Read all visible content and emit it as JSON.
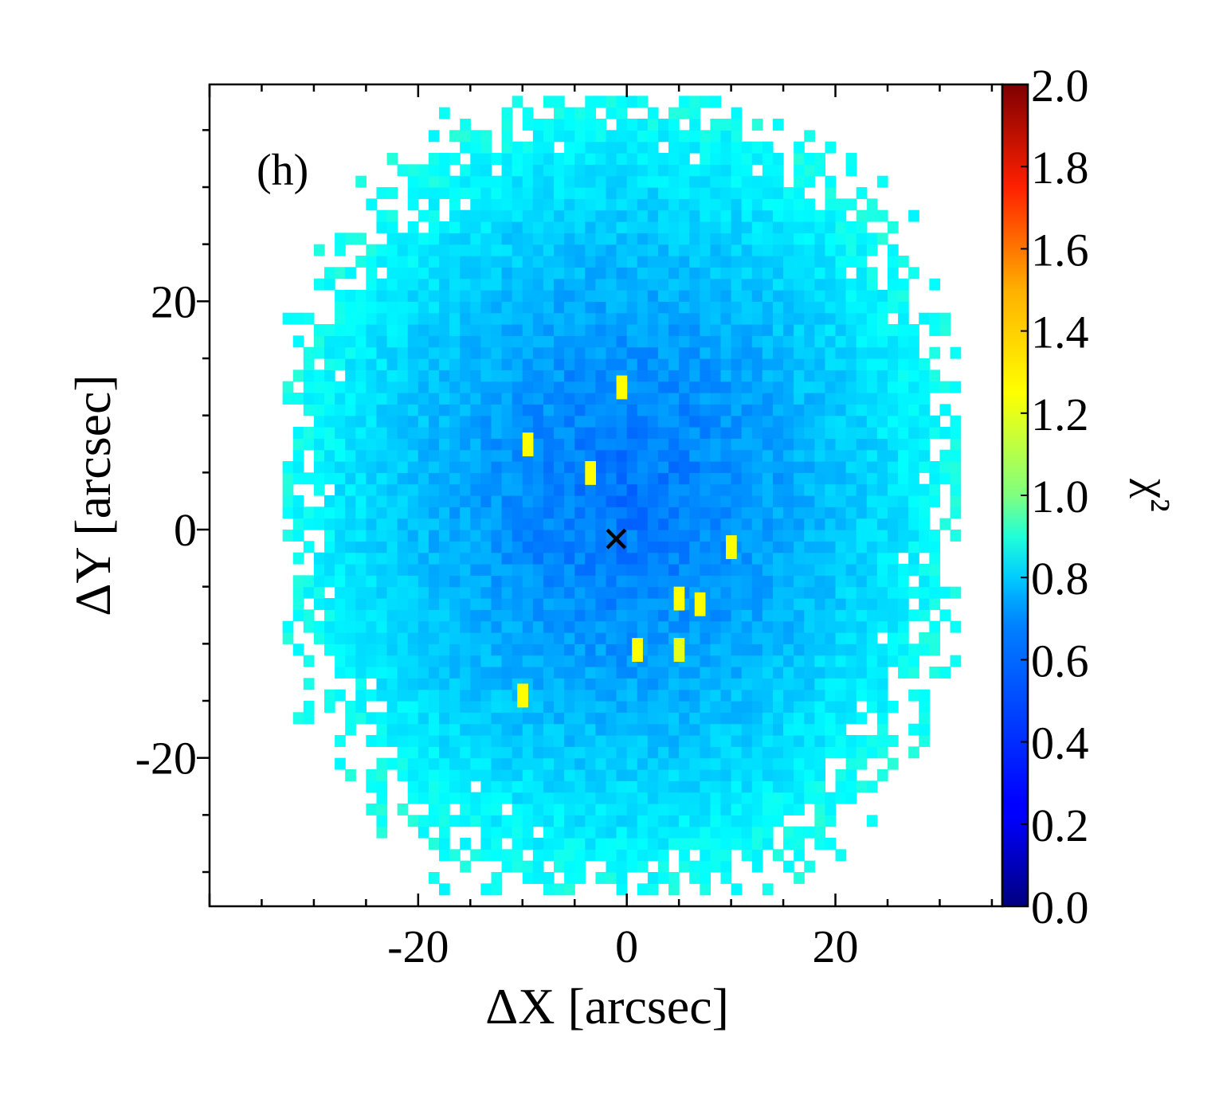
{
  "chart_data": {
    "type": "heatmap",
    "panel_label": "(h)",
    "xlabel": "ΔX [arcsec]",
    "ylabel": "ΔY [arcsec]",
    "xlim": [
      -40,
      36
    ],
    "ylim": [
      -33,
      39
    ],
    "x_ticks": [
      {
        "value": -20,
        "label": "-20"
      },
      {
        "value": 0,
        "label": "0"
      },
      {
        "value": 20,
        "label": "20"
      }
    ],
    "y_ticks": [
      {
        "value": -20,
        "label": "-20"
      },
      {
        "value": 0,
        "label": "0"
      },
      {
        "value": 20,
        "label": "20"
      }
    ],
    "grid": false,
    "pixel_size_arcsec": 1.0,
    "colormap": "jet",
    "colorbar": {
      "label": "χ²",
      "vmin": 0.0,
      "vmax": 2.0,
      "ticks": [
        "0.0",
        "0.2",
        "0.4",
        "0.6",
        "0.8",
        "1.0",
        "1.2",
        "1.4",
        "1.6",
        "1.8",
        "2.0"
      ]
    },
    "map_extent": {
      "x_range": [
        -33,
        32
      ],
      "y_range": [
        -32,
        38
      ],
      "shape": "ellipse"
    },
    "value_profile": {
      "center": 0.48,
      "edge": 0.78
    },
    "outlier_pixels": [
      {
        "x": -0.5,
        "y": 12.5,
        "value": 1.25
      },
      {
        "x": -9.5,
        "y": 7.5,
        "value": 1.25
      },
      {
        "x": -3.5,
        "y": 5.0,
        "value": 1.25
      },
      {
        "x": 10.0,
        "y": -1.5,
        "value": 1.25
      },
      {
        "x": 5.0,
        "y": -6.0,
        "value": 1.25
      },
      {
        "x": 7.0,
        "y": -6.5,
        "value": 1.25
      },
      {
        "x": 1.0,
        "y": -10.5,
        "value": 1.25
      },
      {
        "x": 5.0,
        "y": -10.5,
        "value": 1.2
      },
      {
        "x": -10.0,
        "y": -14.5,
        "value": 1.25
      }
    ],
    "marker": {
      "symbol": "×",
      "x": -1.0,
      "y": -1.0,
      "color": "#ffffff"
    },
    "colors": {
      "background": "#ffffff",
      "marker": "#ffffff",
      "axis": "#000000"
    }
  }
}
